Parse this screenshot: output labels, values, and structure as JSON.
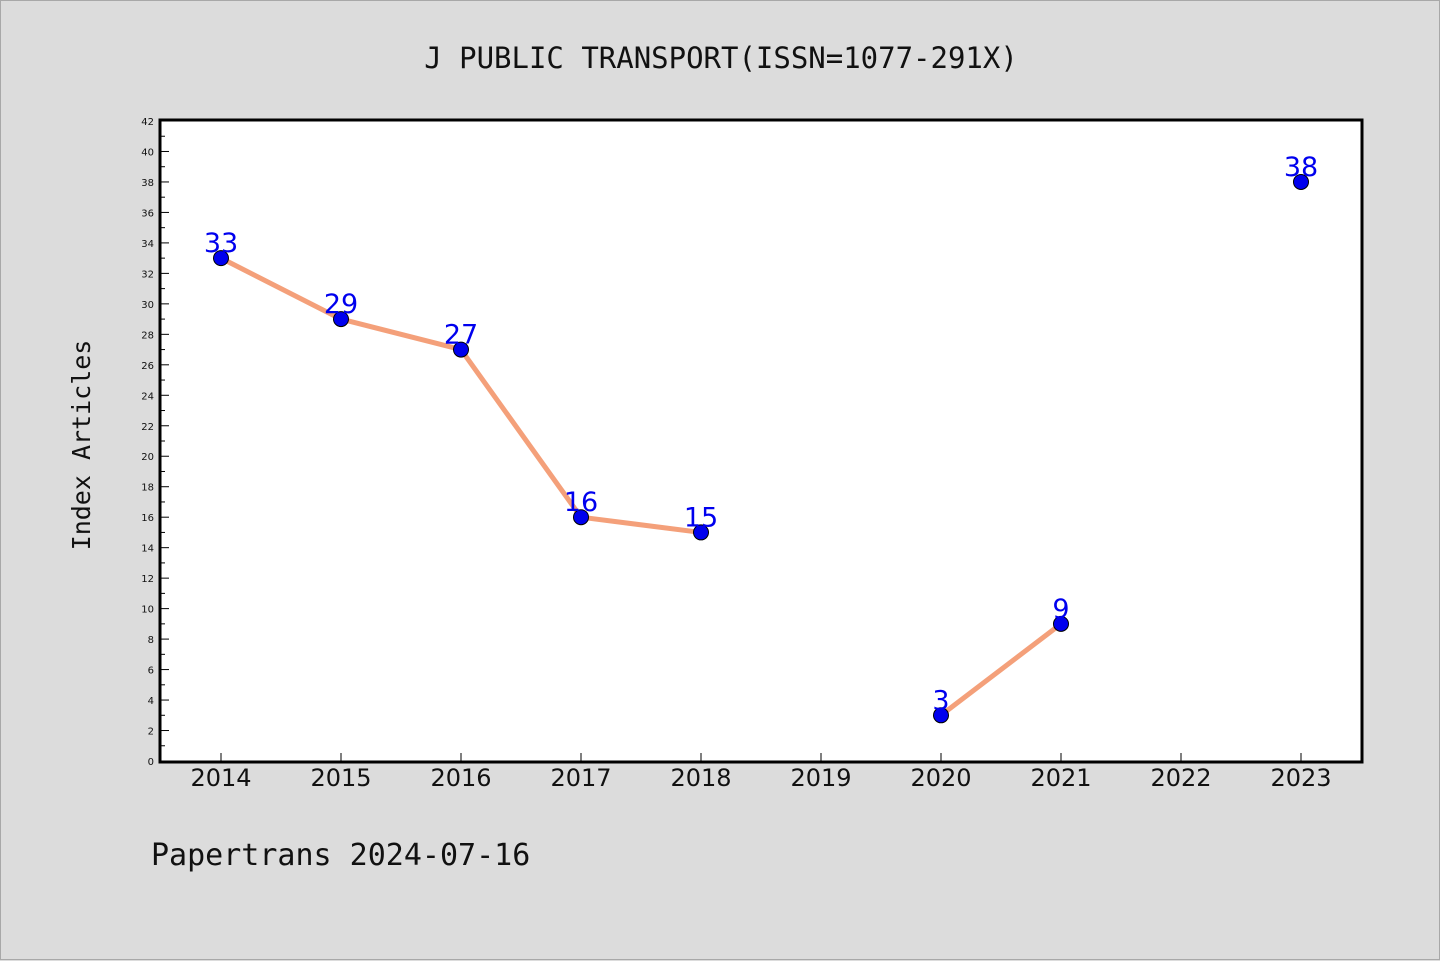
{
  "chart_data": {
    "type": "line",
    "title": "J PUBLIC TRANSPORT(ISSN=1077-291X)",
    "ylabel": "Index Articles",
    "xlabel": "",
    "categories": [
      "2014",
      "2015",
      "2016",
      "2017",
      "2018",
      "2019",
      "2020",
      "2021",
      "2022",
      "2023"
    ],
    "series": [
      {
        "values": [
          33,
          29,
          27,
          16,
          15,
          null,
          3,
          9,
          null,
          38
        ],
        "line_color": "#f4a07a",
        "marker_color": "#0000ee",
        "label_color": "#0000ee"
      }
    ],
    "ylim": [
      0,
      42
    ],
    "ytick_step": 2,
    "grid": false,
    "legend": "none"
  },
  "footer": "Papertrans 2024-07-16"
}
